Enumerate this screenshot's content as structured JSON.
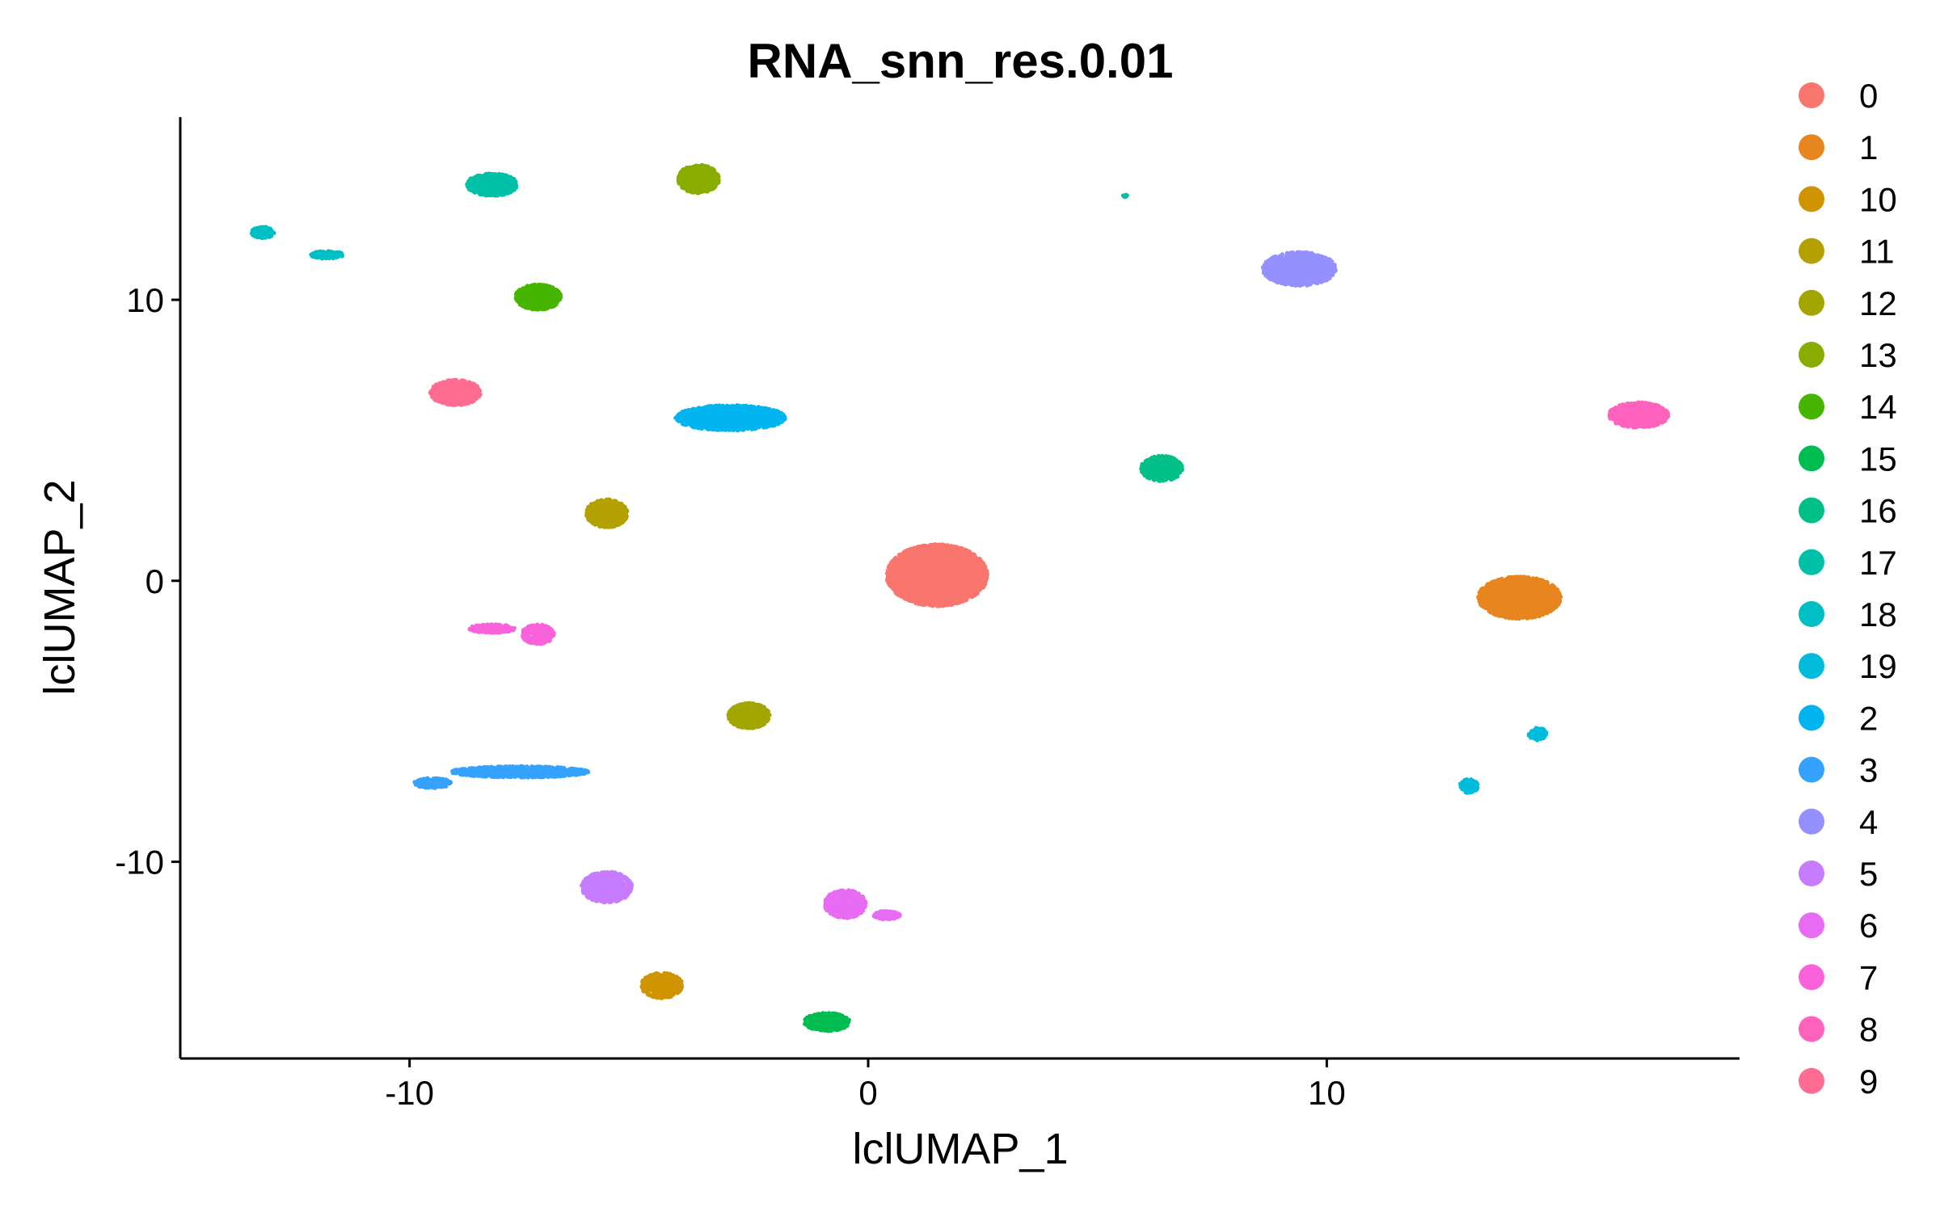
{
  "chart_data": {
    "type": "scatter",
    "title": "RNA_snn_res.0.01",
    "xlabel": "lclUMAP_1",
    "ylabel": "lclUMAP_2",
    "xlim": [
      -15,
      19
    ],
    "ylim": [
      -17,
      16.5
    ],
    "xticks": [
      -10,
      0,
      10
    ],
    "yticks": [
      -10,
      0,
      10
    ],
    "xtick_labels": [
      "-10",
      "0",
      "10"
    ],
    "ytick_labels": [
      "-10",
      "0",
      "10"
    ],
    "legend_position": "right",
    "grid": false,
    "series": [
      {
        "name": "0",
        "color": "#F8766D",
        "clusters": [
          {
            "x": 1.5,
            "y": 0.2,
            "rx": 1.1,
            "ry": 1.1
          }
        ]
      },
      {
        "name": "1",
        "color": "#E7851E",
        "clusters": [
          {
            "x": 14.2,
            "y": -0.6,
            "rx": 0.9,
            "ry": 0.75
          }
        ]
      },
      {
        "name": "10",
        "color": "#D09400",
        "clusters": [
          {
            "x": -4.5,
            "y": -14.4,
            "rx": 0.45,
            "ry": 0.45
          }
        ]
      },
      {
        "name": "11",
        "color": "#B2A100",
        "clusters": [
          {
            "x": -5.7,
            "y": 2.4,
            "rx": 0.45,
            "ry": 0.5
          }
        ]
      },
      {
        "name": "12",
        "color": "#A3A500",
        "clusters": [
          {
            "x": -2.6,
            "y": -4.8,
            "rx": 0.45,
            "ry": 0.45
          }
        ]
      },
      {
        "name": "13",
        "color": "#89AC00",
        "clusters": [
          {
            "x": -3.7,
            "y": 14.3,
            "rx": 0.45,
            "ry": 0.5
          }
        ]
      },
      {
        "name": "14",
        "color": "#45B500",
        "clusters": [
          {
            "x": -7.2,
            "y": 10.1,
            "rx": 0.5,
            "ry": 0.45
          }
        ]
      },
      {
        "name": "15",
        "color": "#00BC51",
        "clusters": [
          {
            "x": -0.9,
            "y": -15.7,
            "rx": 0.5,
            "ry": 0.32
          }
        ]
      },
      {
        "name": "16",
        "color": "#00C087",
        "clusters": [
          {
            "x": 6.4,
            "y": 4.0,
            "rx": 0.45,
            "ry": 0.45
          }
        ]
      },
      {
        "name": "17",
        "color": "#00C1A7",
        "clusters": [
          {
            "x": -8.2,
            "y": 14.1,
            "rx": 0.55,
            "ry": 0.4
          },
          {
            "x": 5.6,
            "y": 13.7,
            "rx": 0.05,
            "ry": 0.05
          }
        ]
      },
      {
        "name": "18",
        "color": "#00BFC4",
        "clusters": [
          {
            "x": -13.2,
            "y": 12.4,
            "rx": 0.25,
            "ry": 0.2
          },
          {
            "x": -11.8,
            "y": 11.6,
            "rx": 0.35,
            "ry": 0.14
          }
        ]
      },
      {
        "name": "19",
        "color": "#00BBDB",
        "clusters": [
          {
            "x": 14.6,
            "y": -5.45,
            "rx": 0.2,
            "ry": 0.22
          },
          {
            "x": 13.1,
            "y": -7.3,
            "rx": 0.2,
            "ry": 0.25
          }
        ]
      },
      {
        "name": "2",
        "color": "#00B4F0",
        "clusters": [
          {
            "x": -3.0,
            "y": 5.8,
            "rx": 1.2,
            "ry": 0.45
          }
        ]
      },
      {
        "name": "3",
        "color": "#35A2FF",
        "clusters": [
          {
            "x": -7.6,
            "y": -6.8,
            "rx": 1.5,
            "ry": 0.2
          },
          {
            "x": -9.5,
            "y": -7.2,
            "rx": 0.4,
            "ry": 0.18
          }
        ]
      },
      {
        "name": "4",
        "color": "#9590FF",
        "clusters": [
          {
            "x": 9.4,
            "y": 11.1,
            "rx": 0.8,
            "ry": 0.6
          }
        ]
      },
      {
        "name": "5",
        "color": "#C77CFF",
        "clusters": [
          {
            "x": -5.7,
            "y": -10.9,
            "rx": 0.55,
            "ry": 0.55
          }
        ]
      },
      {
        "name": "6",
        "color": "#E76BF3",
        "clusters": [
          {
            "x": -0.5,
            "y": -11.5,
            "rx": 0.45,
            "ry": 0.5
          },
          {
            "x": 0.4,
            "y": -11.9,
            "rx": 0.3,
            "ry": 0.15
          }
        ]
      },
      {
        "name": "7",
        "color": "#FA62DB",
        "clusters": [
          {
            "x": -7.2,
            "y": -1.9,
            "rx": 0.35,
            "ry": 0.35
          },
          {
            "x": -8.2,
            "y": -1.7,
            "rx": 0.5,
            "ry": 0.15
          }
        ]
      },
      {
        "name": "8",
        "color": "#FF62BC",
        "clusters": [
          {
            "x": 16.8,
            "y": 5.9,
            "rx": 0.65,
            "ry": 0.45
          }
        ]
      },
      {
        "name": "9",
        "color": "#FF6C91",
        "clusters": [
          {
            "x": -9.0,
            "y": 6.7,
            "rx": 0.55,
            "ry": 0.45
          }
        ]
      }
    ]
  }
}
